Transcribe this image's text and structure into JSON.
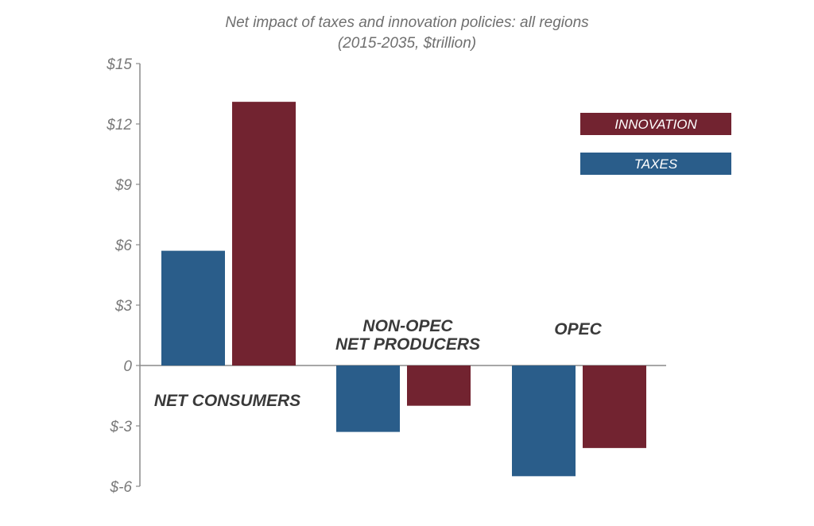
{
  "title_line1": "Net impact of taxes and innovation policies: all regions",
  "title_line2": "(2015-2035, $trillion)",
  "colors": {
    "taxes": "#2a5d8a",
    "innovation": "#722330",
    "axis": "#8a8a8a"
  },
  "chart_data": {
    "type": "bar",
    "title": "Net impact of taxes and innovation policies: all regions (2015-2035, $trillion)",
    "categories": [
      "NET CONSUMERS",
      "NON-OPEC NET PRODUCERS",
      "OPEC"
    ],
    "series": [
      {
        "name": "TAXES",
        "values": [
          5.7,
          -3.3,
          -5.5
        ]
      },
      {
        "name": "INNOVATION",
        "values": [
          13.1,
          -2.0,
          -4.1
        ]
      }
    ],
    "ylim": [
      -6,
      15
    ],
    "yticks": [
      15,
      12,
      9,
      6,
      3,
      0,
      -3,
      -6
    ],
    "ytick_labels": [
      "$15",
      "$12",
      "$9",
      "$6",
      "$3",
      "0",
      "$-3",
      "$-6"
    ],
    "legend": [
      "INNOVATION",
      "TAXES"
    ],
    "legend_position": "top-right",
    "grid": false
  }
}
